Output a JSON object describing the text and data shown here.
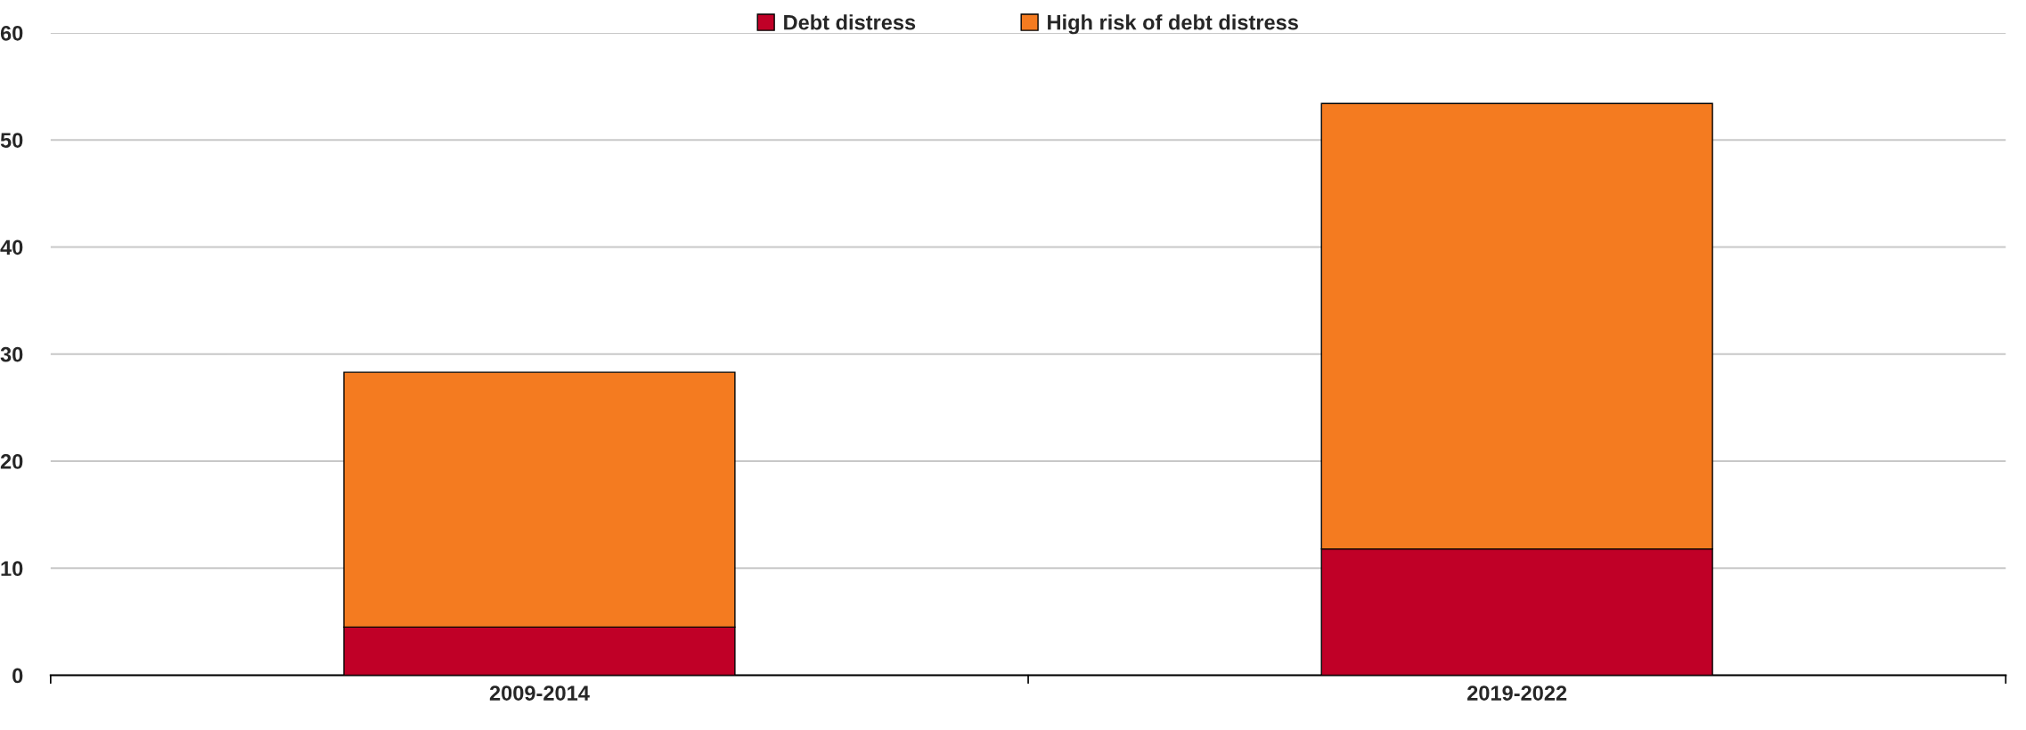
{
  "chart_data": {
    "type": "bar",
    "stacked": true,
    "categories": [
      "2009-2014",
      "2019-2022"
    ],
    "series": [
      {
        "name": "Debt distress",
        "color": "#c00027",
        "values": [
          4.5,
          11.8
        ]
      },
      {
        "name": "High risk of debt distress",
        "color": "#f47b20",
        "values": [
          23.8,
          41.6
        ]
      }
    ],
    "ylim": [
      0,
      60
    ],
    "yticks": [
      0,
      10,
      20,
      30,
      40,
      50,
      60
    ],
    "grid": "y",
    "legend": "top"
  }
}
